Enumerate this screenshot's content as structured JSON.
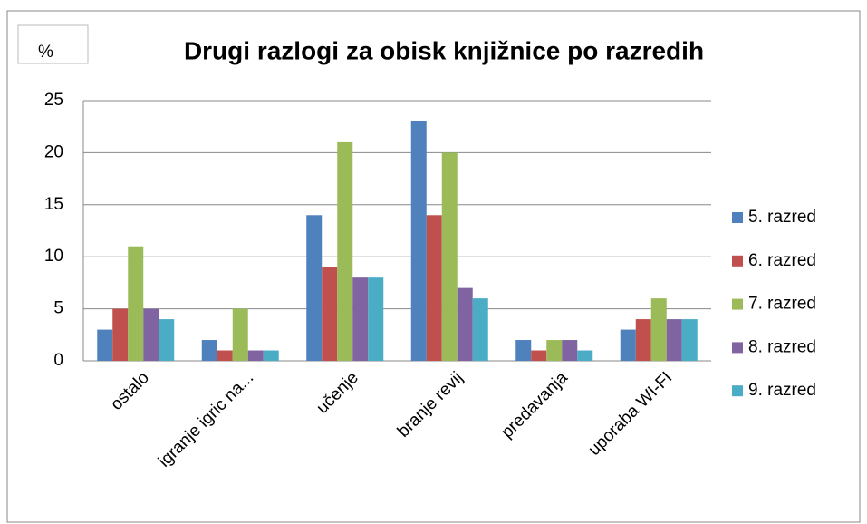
{
  "chart_data": {
    "type": "bar",
    "title": "Drugi razlogi za obisk knjižnice po razredih",
    "y_label": "%",
    "categories": [
      "ostalo",
      "igranje igric na...",
      "učenje",
      "branje revij",
      "predavanja",
      "uporaba WI-FI"
    ],
    "series": [
      {
        "name": "5. razred",
        "color": "#4f81bd",
        "values": [
          3,
          2,
          14,
          23,
          2,
          3
        ]
      },
      {
        "name": "6. razred",
        "color": "#c0504d",
        "values": [
          5,
          1,
          9,
          14,
          1,
          4
        ]
      },
      {
        "name": "7. razred",
        "color": "#9bbb59",
        "values": [
          11,
          5,
          21,
          20,
          2,
          6
        ]
      },
      {
        "name": "8. razred",
        "color": "#8064a2",
        "values": [
          5,
          1,
          8,
          7,
          2,
          4
        ]
      },
      {
        "name": "9. razred",
        "color": "#4bacc6",
        "values": [
          4,
          1,
          8,
          6,
          1,
          4
        ]
      }
    ],
    "ylim": [
      0,
      25
    ],
    "yticks": [
      0,
      5,
      10,
      15,
      20,
      25
    ],
    "grid": true,
    "legend": "right"
  }
}
